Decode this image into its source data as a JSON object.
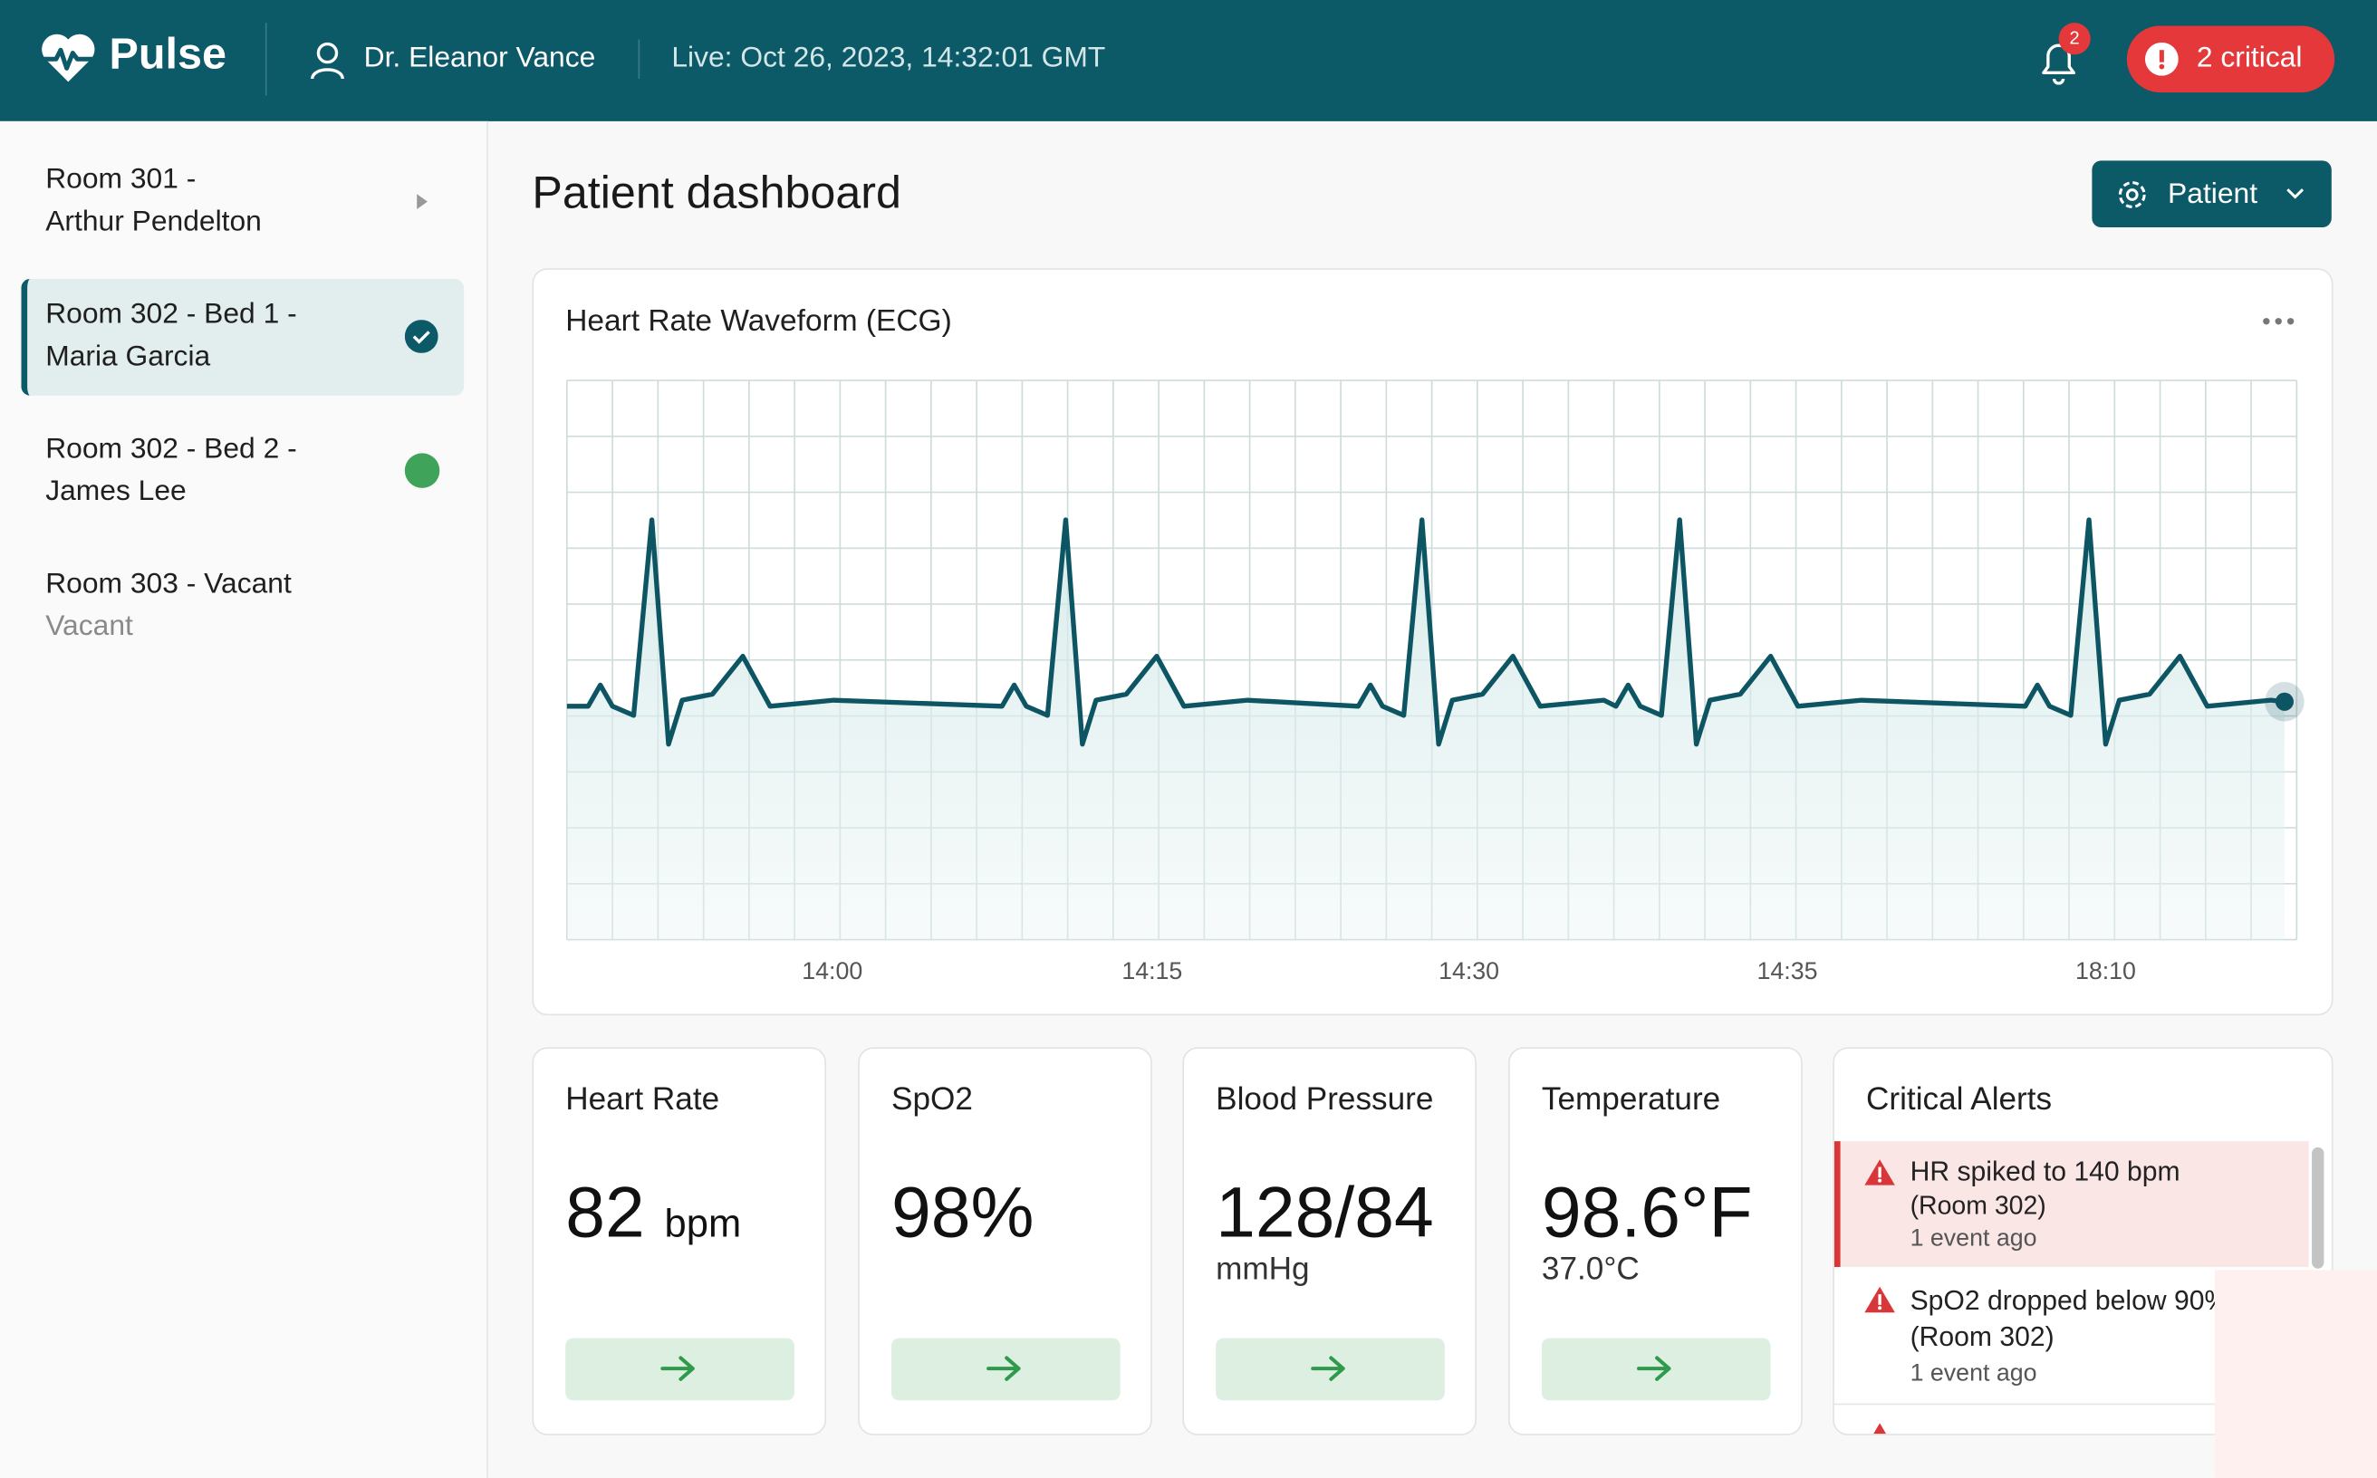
{
  "header": {
    "brand": "Pulse",
    "user": "Dr. Eleanor Vance",
    "live": "Live: Oct 26, 2023, 14:32:01 GMT",
    "notification_count": 2,
    "critical_badge": "2 critical"
  },
  "sidebar": {
    "rooms": [
      {
        "line1": "Room 301 -",
        "line2": "Arthur Pendelton"
      },
      {
        "line1": "Room 302 - Bed 1 -",
        "line2": "Maria Garcia"
      },
      {
        "line1": "Room 302 - Bed 2 -",
        "line2": "James Lee"
      },
      {
        "line1": "Room 303 - Vacant",
        "line2": "Vacant"
      }
    ]
  },
  "main": {
    "title": "Patient dashboard",
    "patient_button": "Patient"
  },
  "ecg": {
    "title": "Heart Rate Waveform (ECG)",
    "x_labels": [
      "14:00",
      "14:15",
      "14:30",
      "14:35",
      "18:10"
    ]
  },
  "vitals": [
    {
      "title": "Heart Rate",
      "value": "82",
      "unit": "bpm"
    },
    {
      "title": "SpO2",
      "value": "98%"
    },
    {
      "title": "Blood Pressure",
      "value": "128/84",
      "unit": "mmHg"
    },
    {
      "title": "Temperature",
      "value": "98.6°F",
      "unit": "37.0°C"
    }
  ],
  "alerts": {
    "title": "Critical Alerts",
    "items": [
      {
        "message": "HR spiked to 140 bpm",
        "room": "(Room 302)",
        "time": "1 event ago"
      },
      {
        "message": "SpO2 dropped below 90%",
        "room": "(Room 302)",
        "time": "1 event ago"
      }
    ]
  }
}
